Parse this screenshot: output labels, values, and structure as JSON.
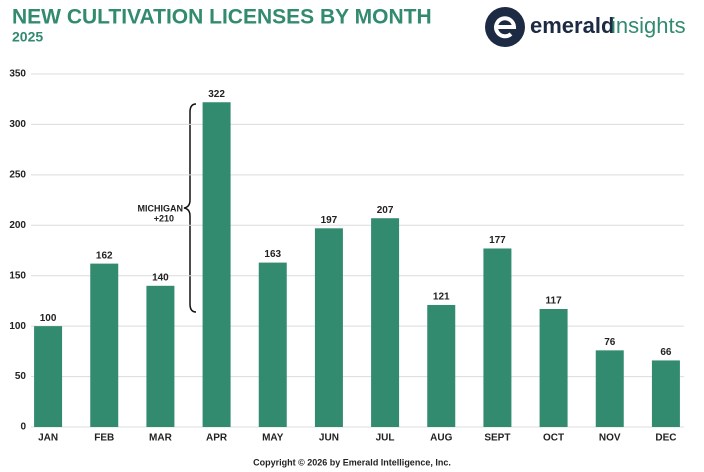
{
  "chart_data": {
    "type": "bar",
    "title": "NEW CULTIVATION LICENSES BY MONTH",
    "subtitle": "2025",
    "logo": {
      "brand": "emerald",
      "suffix": "insights"
    },
    "categories": [
      "JAN",
      "FEB",
      "MAR",
      "APR",
      "MAY",
      "JUN",
      "JUL",
      "AUG",
      "SEPT",
      "OCT",
      "NOV",
      "DEC"
    ],
    "values": [
      100,
      162,
      140,
      322,
      163,
      197,
      207,
      121,
      177,
      117,
      76,
      66
    ],
    "color": "#328a6f",
    "ylim": [
      0,
      350
    ],
    "yticks": [
      0,
      50,
      100,
      150,
      200,
      250,
      300,
      350
    ],
    "grid": true,
    "annotation": [
      "MICHIGAN",
      "+210"
    ],
    "footer": "Copyright © 2026 by Emerald Intelligence, Inc."
  }
}
